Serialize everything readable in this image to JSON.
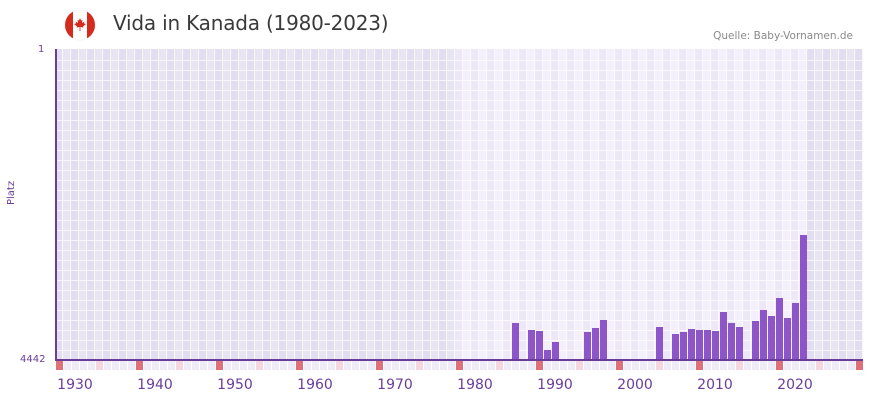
{
  "header": {
    "flag_icon": "canada-flag-icon",
    "title": "Vida in Kanada (1980-2023)",
    "source": "Quelle: Baby-Vornamen.de"
  },
  "colors": {
    "bar": "#8c56c8",
    "axis": "#6a3d9a",
    "bg_dark_a": "#e2def0",
    "bg_dark_b": "#e8e5f2",
    "bg_light_a": "#ede8f8",
    "bg_light_b": "#f3f0fb",
    "mark_red": "#e07078",
    "mark_pink": "#f5d6e0",
    "mark_light": "#efebf9"
  },
  "chart_data": {
    "type": "bar",
    "title": "Vida in Kanada (1980-2023)",
    "xlabel": "",
    "ylabel": "Platz",
    "y_inverted": true,
    "ylim": [
      1,
      4442
    ],
    "xlim": [
      1928,
      2028
    ],
    "highlight_range": [
      1978,
      2021
    ],
    "x_ticks": [
      1930,
      1940,
      1950,
      1960,
      1970,
      1980,
      1990,
      2000,
      2010,
      2020
    ],
    "y_ticks": [
      1,
      4442
    ],
    "grid": true,
    "legend": null,
    "x": [
      1985,
      1987,
      1988,
      1989,
      1990,
      1994,
      1995,
      1996,
      2003,
      2005,
      2006,
      2007,
      2008,
      2009,
      2010,
      2011,
      2012,
      2013,
      2015,
      2016,
      2017,
      2018,
      2019,
      2020,
      2021
    ],
    "values": [
      3914,
      4014,
      4028,
      4299,
      4185,
      4042,
      3985,
      3871,
      3971,
      4071,
      4042,
      3999,
      4014,
      4014,
      4028,
      3757,
      3914,
      3971,
      3885,
      3728,
      3814,
      3557,
      3842,
      3628,
      2657
    ]
  },
  "axis": {
    "y_top_label": "1",
    "y_bottom_label": "4442",
    "y_title": "Platz",
    "x_labels": [
      "1930",
      "1940",
      "1950",
      "1960",
      "1970",
      "1980",
      "1990",
      "2000",
      "2010",
      "2020"
    ]
  }
}
